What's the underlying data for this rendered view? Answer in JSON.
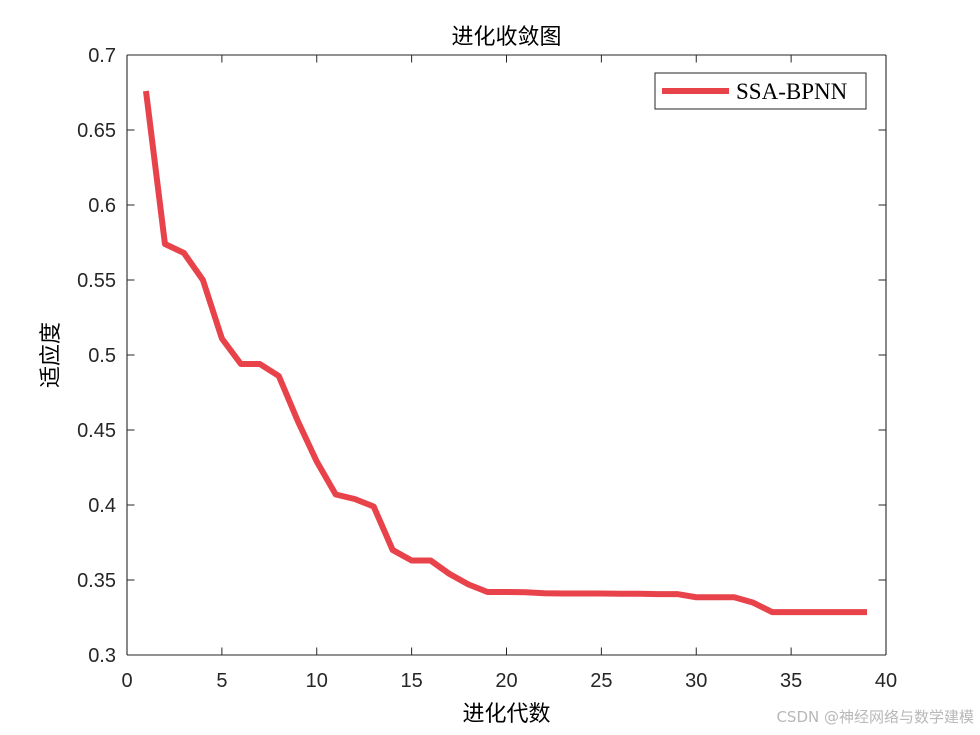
{
  "chart_data": {
    "type": "line",
    "title": "进化收敛图",
    "xlabel": "进化代数",
    "ylabel": "适应度",
    "xlim": [
      0,
      40
    ],
    "ylim": [
      0.3,
      0.7
    ],
    "xticks": [
      0,
      5,
      10,
      15,
      20,
      25,
      30,
      35,
      40
    ],
    "yticks": [
      0.3,
      0.35,
      0.4,
      0.45,
      0.5,
      0.55,
      0.6,
      0.65,
      0.7
    ],
    "xtick_labels": [
      "0",
      "5",
      "10",
      "15",
      "20",
      "25",
      "30",
      "35",
      "40"
    ],
    "ytick_labels": [
      "0.3",
      "0.35",
      "0.4",
      "0.45",
      "0.5",
      "0.55",
      "0.6",
      "0.65",
      "0.7"
    ],
    "grid": false,
    "legend_position": "top-right",
    "series": [
      {
        "name": "SSA-BPNN",
        "color": "#e8434b",
        "x": [
          1,
          2,
          3,
          4,
          5,
          6,
          7,
          8,
          9,
          10,
          11,
          12,
          13,
          14,
          15,
          16,
          17,
          18,
          19,
          20,
          21,
          22,
          23,
          24,
          25,
          26,
          27,
          28,
          29,
          30,
          31,
          32,
          33,
          34,
          35,
          36,
          37,
          38,
          39
        ],
        "values": [
          0.676,
          0.574,
          0.568,
          0.55,
          0.511,
          0.494,
          0.494,
          0.486,
          0.456,
          0.429,
          0.407,
          0.404,
          0.399,
          0.37,
          0.363,
          0.363,
          0.354,
          0.347,
          0.342,
          0.342,
          0.3418,
          0.3412,
          0.341,
          0.341,
          0.341,
          0.3408,
          0.3408,
          0.3406,
          0.3406,
          0.3385,
          0.3385,
          0.3385,
          0.3349,
          0.3286,
          0.3286,
          0.3286,
          0.3286,
          0.3286,
          0.3286
        ]
      }
    ]
  },
  "watermark": "CSDN @神经网络与数学建模"
}
